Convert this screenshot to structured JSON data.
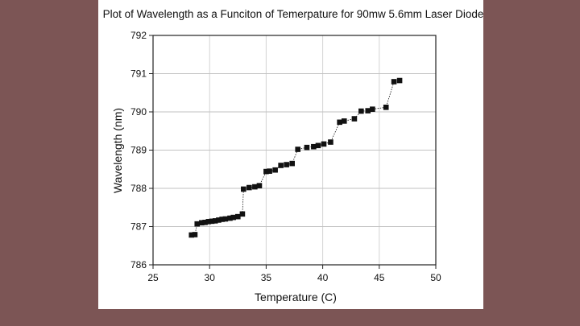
{
  "slide": {
    "background_color": "#7c5555",
    "card_color": "#ffffff"
  },
  "chart_data": {
    "type": "scatter",
    "title": "Plot of Wavelength as a Funciton of Temerpature for 90mw 5.6mm Laser Diode",
    "xlabel": "Temperature (C)",
    "ylabel": "Wavelength (nm)",
    "xlim": [
      25,
      50
    ],
    "ylim": [
      786,
      792
    ],
    "xticks": [
      "25",
      "30",
      "35",
      "40",
      "45",
      "50"
    ],
    "yticks": [
      "786",
      "787",
      "788",
      "789",
      "790",
      "791",
      "792"
    ],
    "grid": true,
    "marker": "square",
    "connected": "dotted",
    "series": [
      {
        "color": "#111111",
        "points": [
          [
            28.4,
            786.78
          ],
          [
            28.7,
            786.79
          ],
          [
            28.9,
            787.07
          ],
          [
            29.3,
            787.1
          ],
          [
            29.6,
            787.11
          ],
          [
            29.9,
            787.13
          ],
          [
            30.2,
            787.14
          ],
          [
            30.5,
            787.15
          ],
          [
            30.8,
            787.17
          ],
          [
            31.1,
            787.19
          ],
          [
            31.4,
            787.2
          ],
          [
            31.8,
            787.22
          ],
          [
            32.1,
            787.24
          ],
          [
            32.5,
            787.26
          ],
          [
            32.9,
            787.33
          ],
          [
            33.0,
            787.98
          ],
          [
            33.5,
            788.02
          ],
          [
            34.0,
            788.04
          ],
          [
            34.4,
            788.07
          ],
          [
            35.0,
            788.44
          ],
          [
            35.3,
            788.45
          ],
          [
            35.8,
            788.48
          ],
          [
            36.3,
            788.6
          ],
          [
            36.8,
            788.62
          ],
          [
            37.3,
            788.65
          ],
          [
            37.8,
            789.02
          ],
          [
            38.6,
            789.07
          ],
          [
            39.2,
            789.09
          ],
          [
            39.6,
            789.12
          ],
          [
            40.1,
            789.16
          ],
          [
            40.7,
            789.21
          ],
          [
            41.5,
            789.73
          ],
          [
            41.9,
            789.76
          ],
          [
            42.8,
            789.82
          ],
          [
            43.4,
            790.02
          ],
          [
            44.0,
            790.03
          ],
          [
            44.4,
            790.07
          ],
          [
            45.6,
            790.12
          ],
          [
            46.3,
            790.79
          ],
          [
            46.8,
            790.82
          ]
        ]
      }
    ]
  }
}
